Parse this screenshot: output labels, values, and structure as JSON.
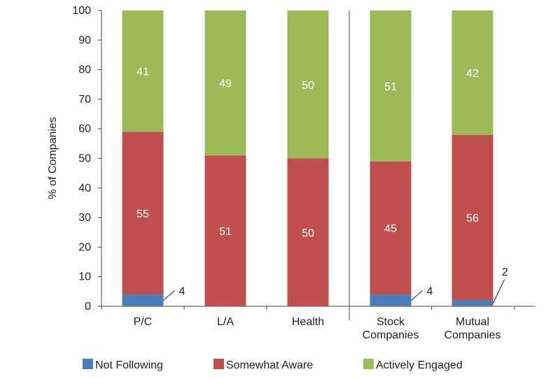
{
  "chart_data": {
    "type": "bar",
    "stacked": true,
    "title": "",
    "xlabel": "",
    "ylabel": "% of Companies",
    "ylim": [
      0,
      100
    ],
    "yticks": [
      0,
      10,
      20,
      30,
      40,
      50,
      60,
      70,
      80,
      90,
      100
    ],
    "grid": false,
    "legend_position": "bottom",
    "categories": [
      [
        "P/C"
      ],
      [
        "L/A"
      ],
      [
        "Health"
      ],
      [
        "Stock",
        "Companies"
      ],
      [
        "Mutual",
        "Companies"
      ]
    ],
    "group_divider_after_index": 2,
    "series": [
      {
        "name": "Not Following",
        "color": "#4a7ebb",
        "values": [
          4,
          0,
          0,
          4,
          2
        ]
      },
      {
        "name": "Somewhat Aware",
        "color": "#c0504d",
        "values": [
          55,
          51,
          50,
          45,
          56
        ]
      },
      {
        "name": "Actively Engaged",
        "color": "#9bbb59",
        "values": [
          41,
          49,
          50,
          51,
          42
        ]
      }
    ],
    "segment_labels": [
      {
        "series": 1,
        "category": 0,
        "text": "55"
      },
      {
        "series": 2,
        "category": 0,
        "text": "41"
      },
      {
        "series": 1,
        "category": 1,
        "text": "51"
      },
      {
        "series": 2,
        "category": 1,
        "text": "49"
      },
      {
        "series": 1,
        "category": 2,
        "text": "50"
      },
      {
        "series": 2,
        "category": 2,
        "text": "50"
      },
      {
        "series": 1,
        "category": 3,
        "text": "45"
      },
      {
        "series": 2,
        "category": 3,
        "text": "51"
      },
      {
        "series": 1,
        "category": 4,
        "text": "56"
      },
      {
        "series": 2,
        "category": 4,
        "text": "42"
      }
    ],
    "callouts": [
      {
        "category": 0,
        "series": 0,
        "text": "4"
      },
      {
        "category": 3,
        "series": 0,
        "text": "4"
      },
      {
        "category": 4,
        "series": 0,
        "text": "2"
      }
    ]
  }
}
